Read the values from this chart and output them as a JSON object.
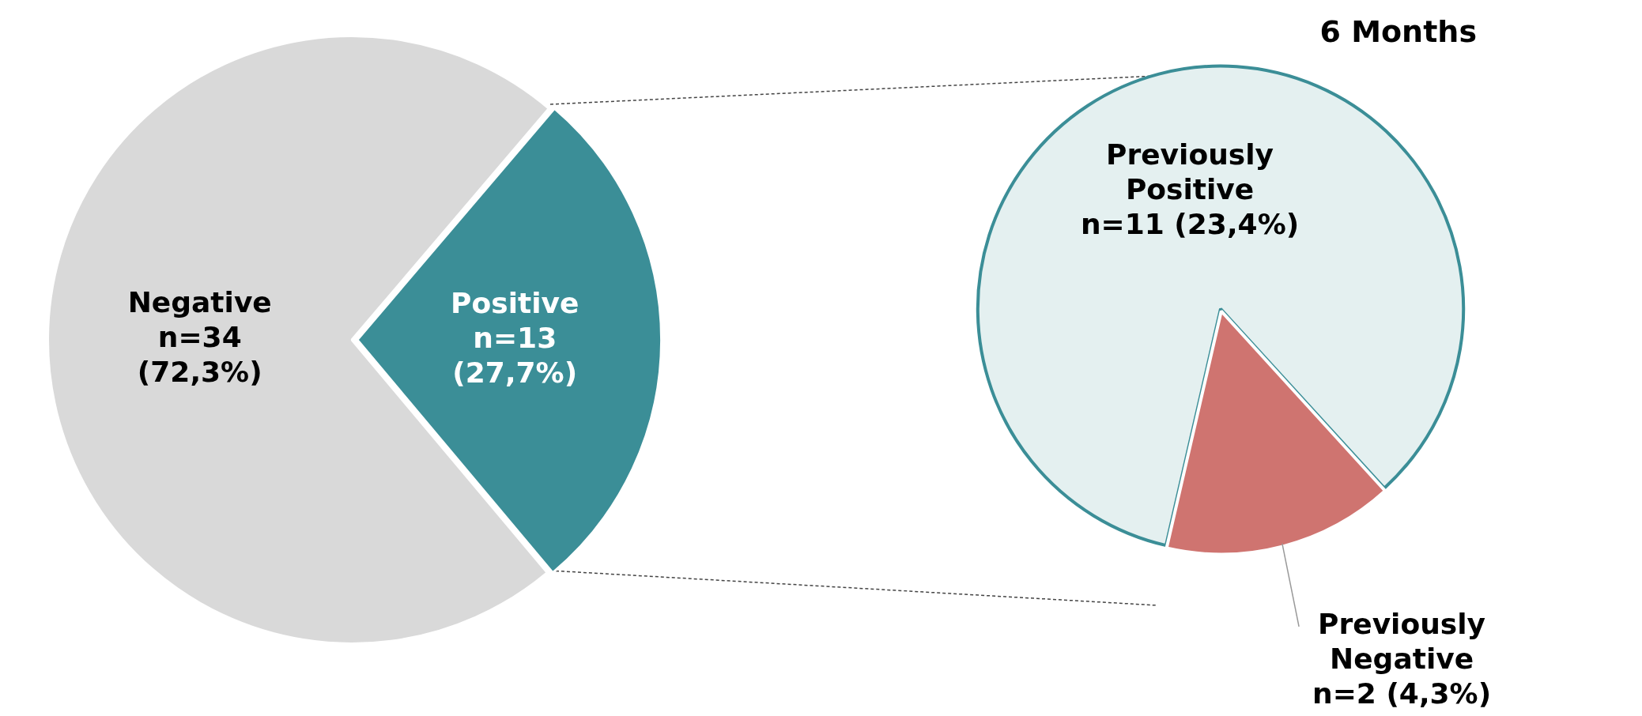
{
  "chart_data": [
    {
      "type": "pie",
      "categories": [
        "Negative",
        "Positive"
      ],
      "values": [
        34,
        13
      ],
      "colors": [
        "#d9d9d9",
        "#3b8e97"
      ],
      "value_labels": [
        "n=34 (72,3%)",
        "n=13 (27,7%)"
      ]
    },
    {
      "type": "pie",
      "title": "6 Months",
      "categories": [
        "Previously Positive",
        "Previously Negative"
      ],
      "values": [
        11,
        2
      ],
      "colors": [
        "#e4f0f0",
        "#cf7470"
      ],
      "value_labels": [
        "n=11 (23,4%)",
        "n=2 (4,3%)"
      ]
    }
  ]
}
